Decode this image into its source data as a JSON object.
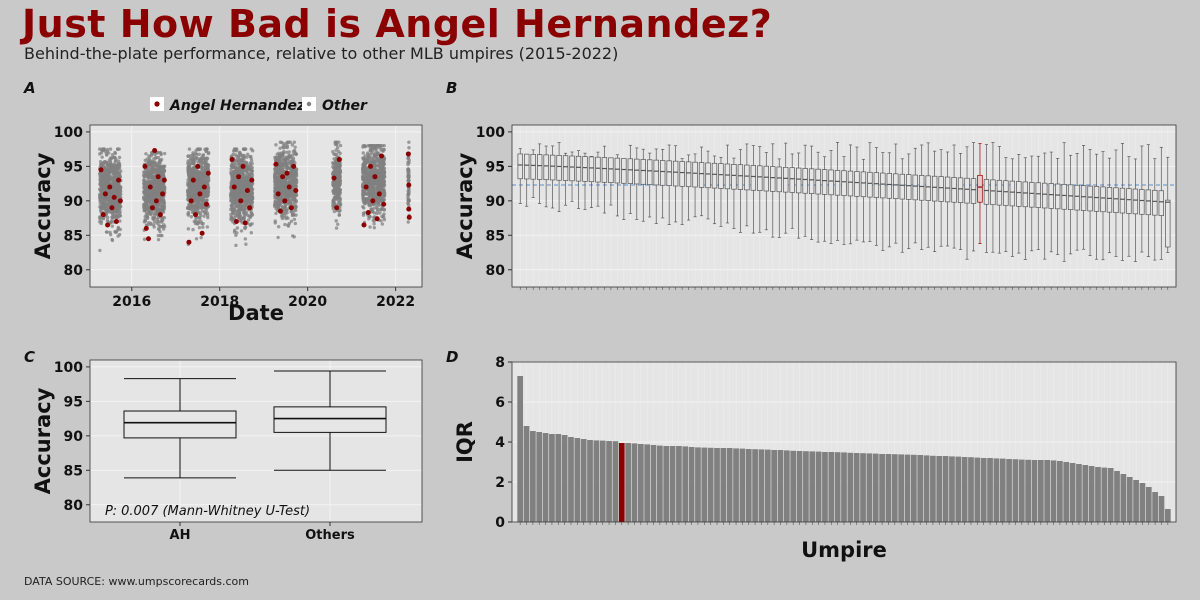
{
  "title": "Just How Bad is Angel Hernandez?",
  "subtitle": "Behind-the-plate performance, relative to other MLB umpires (2015-2022)",
  "source": "DATA SOURCE: www.umpscorecards.com",
  "colors": {
    "highlight": "#8b0000",
    "other": "#808080",
    "panel": "#e5e5e5",
    "page": "#c9c9c9",
    "reference_line": "#5b8fd0"
  },
  "chart_data": [
    {
      "panel": "A",
      "type": "scatter",
      "xlabel": "Date",
      "ylabel": "Accuracy",
      "ylim": [
        77.5,
        101
      ],
      "y_ticks": [
        80,
        85,
        90,
        95,
        100
      ],
      "x_ticks": [
        "2016",
        "2018",
        "2020",
        "2022"
      ],
      "legend": {
        "position": "top",
        "items": [
          "Angel Hernandez",
          "Other"
        ]
      },
      "seasons": [
        {
          "year": 2015,
          "start": 2015.27,
          "end": 2015.75,
          "other_center": 91.5,
          "other_range": [
            79,
            97.5
          ]
        },
        {
          "year": 2016,
          "start": 2016.27,
          "end": 2016.75,
          "other_center": 91.5,
          "other_range": [
            80,
            97
          ]
        },
        {
          "year": 2017,
          "start": 2017.27,
          "end": 2017.75,
          "other_center": 92,
          "other_range": [
            81,
            97.5
          ]
        },
        {
          "year": 2018,
          "start": 2018.25,
          "end": 2018.75,
          "other_center": 92,
          "other_range": [
            80.5,
            97.5
          ]
        },
        {
          "year": 2019,
          "start": 2019.25,
          "end": 2019.75,
          "other_center": 92.5,
          "other_range": [
            83.5,
            98.5
          ]
        },
        {
          "year": 2020,
          "start": 2020.57,
          "end": 2020.75,
          "other_center": 93,
          "other_range": [
            85,
            98.5
          ]
        },
        {
          "year": 2021,
          "start": 2021.25,
          "end": 2021.75,
          "other_center": 93,
          "other_range": [
            83.5,
            98
          ]
        },
        {
          "year": 2022,
          "start": 2022.28,
          "end": 2022.31,
          "other_center": 93,
          "other_range": [
            86,
            98.5
          ]
        }
      ],
      "angel_hernandez_points": [
        [
          2015.3,
          94.5
        ],
        [
          2015.35,
          88
        ],
        [
          2015.4,
          91
        ],
        [
          2015.45,
          86.5
        ],
        [
          2015.5,
          92
        ],
        [
          2015.55,
          89
        ],
        [
          2015.6,
          90.5
        ],
        [
          2015.65,
          87
        ],
        [
          2015.7,
          93
        ],
        [
          2015.74,
          90
        ],
        [
          2016.3,
          95
        ],
        [
          2016.33,
          86
        ],
        [
          2016.38,
          84.5
        ],
        [
          2016.42,
          92
        ],
        [
          2016.47,
          89
        ],
        [
          2016.52,
          97.3
        ],
        [
          2016.56,
          90
        ],
        [
          2016.6,
          93.5
        ],
        [
          2016.65,
          88
        ],
        [
          2016.7,
          91
        ],
        [
          2016.74,
          93
        ],
        [
          2017.3,
          84
        ],
        [
          2017.35,
          90
        ],
        [
          2017.4,
          93
        ],
        [
          2017.45,
          88
        ],
        [
          2017.5,
          95
        ],
        [
          2017.55,
          91
        ],
        [
          2017.6,
          85.3
        ],
        [
          2017.65,
          92
        ],
        [
          2017.7,
          89.5
        ],
        [
          2017.74,
          94
        ],
        [
          2018.28,
          96
        ],
        [
          2018.33,
          92
        ],
        [
          2018.38,
          87
        ],
        [
          2018.43,
          93.5
        ],
        [
          2018.48,
          90
        ],
        [
          2018.53,
          95
        ],
        [
          2018.58,
          86.8
        ],
        [
          2018.63,
          91.5
        ],
        [
          2018.68,
          89
        ],
        [
          2018.73,
          93
        ],
        [
          2019.28,
          95.3
        ],
        [
          2019.33,
          91
        ],
        [
          2019.38,
          88.5
        ],
        [
          2019.43,
          93.5
        ],
        [
          2019.48,
          90
        ],
        [
          2019.53,
          94
        ],
        [
          2019.58,
          92
        ],
        [
          2019.63,
          89
        ],
        [
          2019.68,
          95
        ],
        [
          2019.73,
          91.5
        ],
        [
          2020.6,
          93.3
        ],
        [
          2020.66,
          89
        ],
        [
          2020.72,
          96
        ],
        [
          2021.28,
          86.5
        ],
        [
          2021.33,
          92
        ],
        [
          2021.38,
          88.3
        ],
        [
          2021.43,
          95
        ],
        [
          2021.48,
          90
        ],
        [
          2021.53,
          93.5
        ],
        [
          2021.58,
          87.4
        ],
        [
          2021.63,
          91
        ],
        [
          2021.68,
          96.5
        ],
        [
          2021.73,
          89.5
        ],
        [
          2022.29,
          96.8
        ],
        [
          2022.3,
          92.3
        ],
        [
          2022.3,
          88.8
        ],
        [
          2022.31,
          87.6
        ]
      ]
    },
    {
      "panel": "B",
      "type": "box",
      "xlabel": "",
      "ylabel": "Accuracy",
      "ylim": [
        77.5,
        101
      ],
      "y_ticks": [
        80,
        85,
        90,
        95,
        100
      ],
      "reference_line": 92.3,
      "umpire_count": 101,
      "highlight_index": 71,
      "median_range": [
        95.2,
        89.8
      ],
      "whisker_low_range": [
        90,
        82
      ],
      "whisker_high": 98.5,
      "highlight_box": {
        "median": 92,
        "q1": 89.8,
        "q3": 93.7,
        "low": 83.8,
        "high": 98.3
      }
    },
    {
      "panel": "C",
      "type": "box",
      "ylabel": "Accuracy",
      "ylim": [
        77.5,
        101
      ],
      "y_ticks": [
        80,
        85,
        90,
        95,
        100
      ],
      "categories": [
        "AH",
        "Others"
      ],
      "boxes": [
        {
          "name": "AH",
          "low": 83.9,
          "q1": 89.7,
          "median": 91.9,
          "q3": 93.6,
          "high": 98.3
        },
        {
          "name": "Others",
          "low": 85,
          "q1": 90.5,
          "median": 92.5,
          "q3": 94.2,
          "high": 99.4
        }
      ],
      "annotation": "P: 0.007 (Mann-Whitney U-Test)"
    },
    {
      "panel": "D",
      "type": "bar",
      "xlabel": "Umpire",
      "ylabel": "IQR",
      "ylim": [
        0,
        8
      ],
      "y_ticks": [
        0,
        2,
        4,
        6,
        8
      ],
      "highlight_index": 16,
      "values": [
        7.3,
        4.8,
        4.55,
        4.5,
        4.45,
        4.4,
        4.4,
        4.35,
        4.25,
        4.2,
        4.15,
        4.1,
        4.08,
        4.07,
        4.05,
        4.04,
        3.95,
        3.95,
        3.93,
        3.9,
        3.88,
        3.85,
        3.82,
        3.8,
        3.8,
        3.8,
        3.78,
        3.75,
        3.73,
        3.72,
        3.71,
        3.7,
        3.7,
        3.7,
        3.68,
        3.67,
        3.65,
        3.64,
        3.63,
        3.62,
        3.6,
        3.6,
        3.58,
        3.56,
        3.55,
        3.54,
        3.53,
        3.52,
        3.5,
        3.5,
        3.49,
        3.48,
        3.46,
        3.45,
        3.44,
        3.43,
        3.42,
        3.4,
        3.4,
        3.39,
        3.38,
        3.37,
        3.36,
        3.35,
        3.33,
        3.31,
        3.3,
        3.3,
        3.28,
        3.27,
        3.25,
        3.24,
        3.22,
        3.2,
        3.2,
        3.18,
        3.17,
        3.15,
        3.14,
        3.12,
        3.11,
        3.1,
        3.1,
        3.1,
        3.08,
        3.05,
        3.0,
        2.95,
        2.9,
        2.85,
        2.8,
        2.75,
        2.72,
        2.7,
        2.55,
        2.4,
        2.25,
        2.1,
        1.95,
        1.75,
        1.5,
        1.3,
        0.65
      ]
    }
  ],
  "panel_labels": [
    "A",
    "B",
    "C",
    "D"
  ]
}
